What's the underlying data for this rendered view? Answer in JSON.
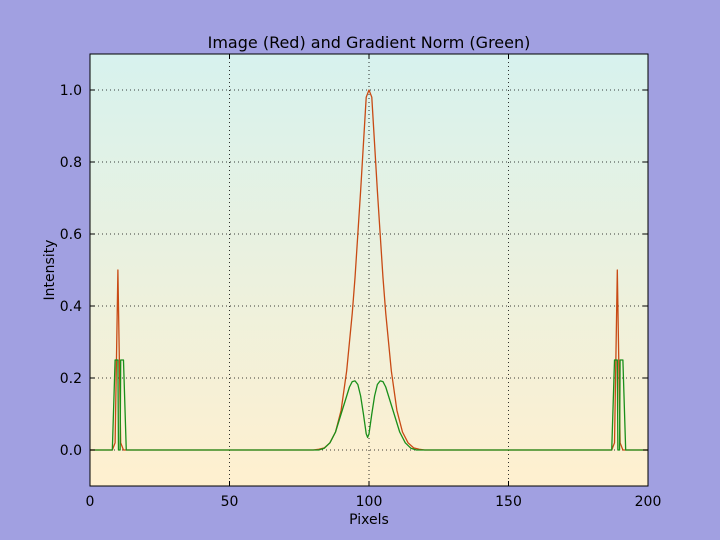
{
  "figure": {
    "background_color": "#a1a0e1"
  },
  "chart_data": {
    "type": "line",
    "title": "Image (Red) and Gradient Norm (Green)",
    "xlabel": "Pixels",
    "ylabel": "Intensity",
    "xlim": [
      0,
      200
    ],
    "ylim": [
      -0.1,
      1.1
    ],
    "xticks": [
      0,
      50,
      100,
      150,
      200
    ],
    "yticks": [
      0.0,
      0.2,
      0.4,
      0.6,
      0.8,
      1.0
    ],
    "xtick_labels": [
      "0",
      "50",
      "100",
      "150",
      "200"
    ],
    "ytick_labels": [
      "0.0",
      "0.2",
      "0.4",
      "0.6",
      "0.8",
      "1.0"
    ],
    "grid": true,
    "background_gradient": {
      "top": "#d7f2ee",
      "bottom": "#fff0cf"
    },
    "series": [
      {
        "name": "Image",
        "color": "#c84a14",
        "points": [
          [
            0,
            0
          ],
          [
            8,
            0
          ],
          [
            9,
            0.02
          ],
          [
            10,
            0.5
          ],
          [
            11,
            0.02
          ],
          [
            12,
            0
          ],
          [
            80,
            0
          ],
          [
            82,
            0.002
          ],
          [
            84,
            0.006
          ],
          [
            86,
            0.02
          ],
          [
            88,
            0.05
          ],
          [
            90,
            0.11
          ],
          [
            92,
            0.22
          ],
          [
            94,
            0.38
          ],
          [
            95,
            0.48
          ],
          [
            96,
            0.6
          ],
          [
            97,
            0.72
          ],
          [
            98,
            0.85
          ],
          [
            99,
            0.98
          ],
          [
            100,
            1.0
          ],
          [
            101,
            0.98
          ],
          [
            102,
            0.85
          ],
          [
            103,
            0.72
          ],
          [
            104,
            0.6
          ],
          [
            105,
            0.48
          ],
          [
            106,
            0.38
          ],
          [
            108,
            0.22
          ],
          [
            110,
            0.11
          ],
          [
            112,
            0.05
          ],
          [
            114,
            0.02
          ],
          [
            116,
            0.006
          ],
          [
            118,
            0.002
          ],
          [
            120,
            0
          ],
          [
            187,
            0
          ],
          [
            188,
            0.02
          ],
          [
            189,
            0.5
          ],
          [
            190,
            0.02
          ],
          [
            191,
            0
          ],
          [
            200,
            0
          ]
        ]
      },
      {
        "name": "Gradient Norm",
        "color": "#1a8f1a",
        "points": [
          [
            0,
            0
          ],
          [
            8,
            0
          ],
          [
            9,
            0.25
          ],
          [
            10,
            0.25
          ],
          [
            10.2,
            0
          ],
          [
            10.8,
            0
          ],
          [
            11,
            0.25
          ],
          [
            12,
            0.25
          ],
          [
            13,
            0
          ],
          [
            82,
            0
          ],
          [
            84,
            0.005
          ],
          [
            86,
            0.02
          ],
          [
            88,
            0.05
          ],
          [
            90,
            0.1
          ],
          [
            92,
            0.15
          ],
          [
            93,
            0.175
          ],
          [
            94,
            0.19
          ],
          [
            95,
            0.192
          ],
          [
            96,
            0.182
          ],
          [
            97,
            0.15
          ],
          [
            98,
            0.1
          ],
          [
            99,
            0.045
          ],
          [
            99.5,
            0.035
          ],
          [
            100,
            0.045
          ],
          [
            101,
            0.1
          ],
          [
            102,
            0.15
          ],
          [
            103,
            0.182
          ],
          [
            104,
            0.192
          ],
          [
            105,
            0.19
          ],
          [
            106,
            0.175
          ],
          [
            107,
            0.15
          ],
          [
            109,
            0.1
          ],
          [
            111,
            0.05
          ],
          [
            113,
            0.02
          ],
          [
            115,
            0.005
          ],
          [
            117,
            0
          ],
          [
            187,
            0
          ],
          [
            188,
            0.25
          ],
          [
            189,
            0.25
          ],
          [
            189.2,
            0
          ],
          [
            189.8,
            0
          ],
          [
            190,
            0.25
          ],
          [
            191,
            0.25
          ],
          [
            192,
            0
          ],
          [
            200,
            0
          ]
        ]
      }
    ]
  }
}
